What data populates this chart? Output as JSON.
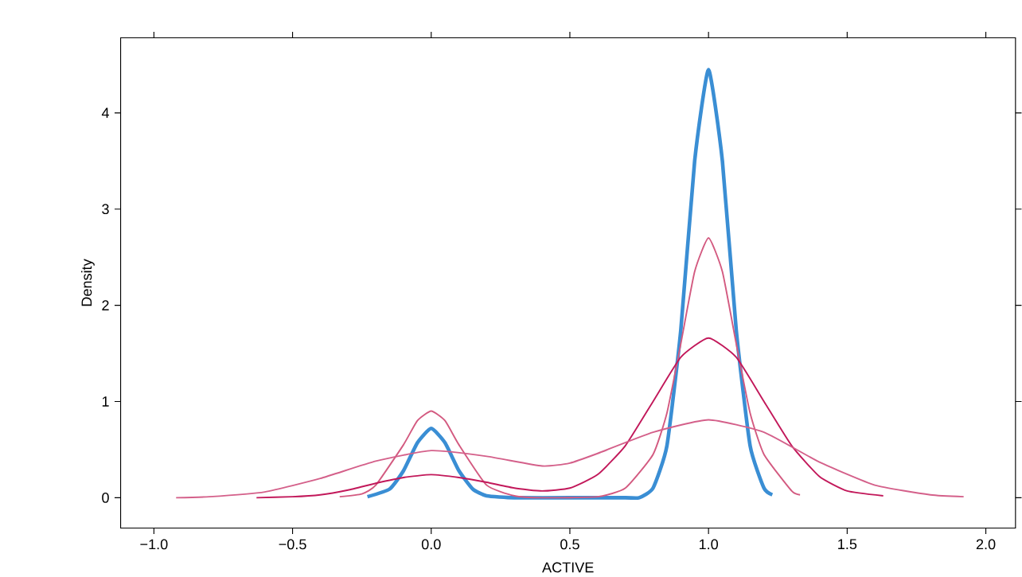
{
  "chart_data": {
    "type": "line",
    "xlabel": "ACTIVE",
    "ylabel": "Density",
    "xlim": [
      -1.12,
      2.107
    ],
    "ylim": [
      -0.315,
      4.78
    ],
    "xticks": [
      {
        "value": -1,
        "label": "−1.0"
      },
      {
        "value": -0.5,
        "label": "−0.5"
      },
      {
        "value": 0,
        "label": "0.0"
      },
      {
        "value": 0.5,
        "label": "0.5"
      },
      {
        "value": 1,
        "label": "1.0"
      },
      {
        "value": 1.5,
        "label": "1.5"
      },
      {
        "value": 2,
        "label": "2.0"
      }
    ],
    "yticks": [
      0,
      1,
      2,
      3,
      4
    ],
    "grid": false,
    "marker": "none",
    "line_style": "solid",
    "series": [
      {
        "color": "#3a8ed4",
        "x": [
          -0.23,
          -0.15,
          -0.1,
          -0.05,
          0,
          0.05,
          0.1,
          0.15,
          0.2,
          0.3,
          0.5,
          0.7,
          0.75,
          0.8,
          0.85,
          0.9,
          0.95,
          1.0,
          1.05,
          1.1,
          1.15,
          1.2,
          1.23
        ],
        "values": [
          0.01,
          0.09,
          0.28,
          0.57,
          0.72,
          0.57,
          0.28,
          0.09,
          0.02,
          0,
          0,
          0,
          0.0,
          0.1,
          0.54,
          1.74,
          3.5,
          4.45,
          3.5,
          1.74,
          0.54,
          0.1,
          0.03
        ]
      },
      {
        "color": "#d35a80",
        "x": [
          -0.33,
          -0.25,
          -0.2,
          -0.1,
          -0.05,
          0,
          0.05,
          0.1,
          0.2,
          0.3,
          0.4,
          0.6,
          0.7,
          0.8,
          0.85,
          0.9,
          0.95,
          1.0,
          1.05,
          1.1,
          1.15,
          1.2,
          1.3,
          1.33
        ],
        "values": [
          0.01,
          0.04,
          0.13,
          0.55,
          0.8,
          0.9,
          0.8,
          0.55,
          0.13,
          0.02,
          0,
          0.01,
          0.1,
          0.45,
          0.88,
          1.6,
          2.35,
          2.7,
          2.35,
          1.6,
          0.88,
          0.45,
          0.07,
          0.03
        ]
      },
      {
        "color": "#c2185a",
        "x": [
          -0.63,
          -0.5,
          -0.4,
          -0.3,
          -0.2,
          -0.1,
          0,
          0.1,
          0.2,
          0.3,
          0.4,
          0.5,
          0.6,
          0.7,
          0.8,
          0.9,
          1.0,
          1.1,
          1.2,
          1.3,
          1.4,
          1.5,
          1.63
        ],
        "values": [
          0.0,
          0.01,
          0.03,
          0.08,
          0.15,
          0.21,
          0.24,
          0.21,
          0.16,
          0.1,
          0.07,
          0.1,
          0.24,
          0.54,
          1.0,
          1.46,
          1.66,
          1.46,
          1.0,
          0.54,
          0.22,
          0.07,
          0.02
        ]
      },
      {
        "color": "#d4608a",
        "x": [
          -0.92,
          -0.8,
          -0.6,
          -0.4,
          -0.2,
          0,
          0.2,
          0.4,
          0.5,
          0.6,
          0.8,
          1.0,
          1.2,
          1.4,
          1.6,
          1.8,
          1.92
        ],
        "values": [
          0.0,
          0.01,
          0.06,
          0.2,
          0.38,
          0.49,
          0.43,
          0.33,
          0.36,
          0.46,
          0.68,
          0.81,
          0.68,
          0.37,
          0.13,
          0.03,
          0.01
        ]
      }
    ]
  }
}
